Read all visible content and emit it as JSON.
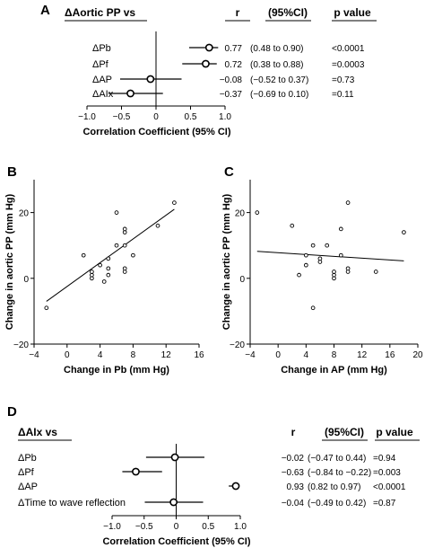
{
  "chart_data": [
    {
      "panel": "A",
      "type": "forest",
      "title": "ΔAortic PP vs",
      "headers": {
        "r": "r",
        "ci": "(95%CI)",
        "p": "p value"
      },
      "xlabel": "Correlation Coefficient (95% CI)",
      "xlim": [
        -1.0,
        1.0
      ],
      "xticks": [
        -1.0,
        -0.5,
        0,
        0.5,
        1.0
      ],
      "xtick_labels": [
        "−1.0",
        "−0.5",
        "0",
        "0.5",
        "1.0"
      ],
      "rows": [
        {
          "label": "ΔPb",
          "r": 0.77,
          "lo": 0.48,
          "hi": 0.9,
          "r_text": "0.77",
          "ci_text": "(0.48 to 0.90)",
          "p_text": "<0.0001"
        },
        {
          "label": "ΔPf",
          "r": 0.72,
          "lo": 0.38,
          "hi": 0.88,
          "r_text": "0.72",
          "ci_text": "(0.38 to 0.88)",
          "p_text": "=0.0003"
        },
        {
          "label": "ΔAP",
          "r": -0.08,
          "lo": -0.52,
          "hi": 0.37,
          "r_text": "−0.08",
          "ci_text": "(−0.52 to 0.37)",
          "p_text": "=0.73"
        },
        {
          "label": "ΔAIx",
          "r": -0.37,
          "lo": -0.69,
          "hi": 0.1,
          "r_text": "−0.37",
          "ci_text": "(−0.69 to 0.10)",
          "p_text": "=0.11"
        }
      ]
    },
    {
      "panel": "B",
      "type": "scatter",
      "xlabel": "Change in Pb (mm Hg)",
      "ylabel": "Change in aortic PP (mm Hg)",
      "xlim": [
        -4,
        16
      ],
      "ylim": [
        -20,
        30
      ],
      "xticks": [
        -4,
        0,
        4,
        8,
        12,
        16
      ],
      "yticks": [
        -20,
        0,
        20
      ],
      "xtick_labels": [
        "−4",
        "0",
        "4",
        "8",
        "12",
        "16"
      ],
      "ytick_labels": [
        "−20",
        "0",
        "20"
      ],
      "points": [
        [
          -2.5,
          -9
        ],
        [
          2,
          7
        ],
        [
          3,
          0
        ],
        [
          3,
          1
        ],
        [
          3,
          2
        ],
        [
          4,
          4
        ],
        [
          4.5,
          -1
        ],
        [
          5,
          1
        ],
        [
          5,
          3
        ],
        [
          5,
          6
        ],
        [
          6,
          10
        ],
        [
          6,
          20
        ],
        [
          7,
          2
        ],
        [
          7,
          3
        ],
        [
          7,
          10
        ],
        [
          7,
          14
        ],
        [
          7,
          15
        ],
        [
          8,
          7
        ],
        [
          11,
          16
        ],
        [
          13,
          23
        ]
      ],
      "fit_line": [
        [
          -2.5,
          -7
        ],
        [
          13,
          21
        ]
      ]
    },
    {
      "panel": "C",
      "type": "scatter",
      "xlabel": "Change in AP (mm Hg)",
      "ylabel": "Change in aortic PP (mm Hg)",
      "xlim": [
        -4,
        20
      ],
      "ylim": [
        -20,
        30
      ],
      "xticks": [
        -4,
        0,
        4,
        8,
        12,
        16,
        20
      ],
      "yticks": [
        -20,
        0,
        20
      ],
      "xtick_labels": [
        "−4",
        "0",
        "4",
        "8",
        "12",
        "16",
        "20"
      ],
      "ytick_labels": [
        "−20",
        "0",
        "20"
      ],
      "points": [
        [
          -3,
          20
        ],
        [
          2,
          16
        ],
        [
          3,
          1
        ],
        [
          4,
          4
        ],
        [
          4,
          7
        ],
        [
          5,
          10
        ],
        [
          5,
          -9
        ],
        [
          6,
          5
        ],
        [
          6,
          6
        ],
        [
          7,
          10
        ],
        [
          8,
          0
        ],
        [
          8,
          1
        ],
        [
          8,
          2
        ],
        [
          9,
          7
        ],
        [
          9,
          15
        ],
        [
          10,
          2
        ],
        [
          10,
          3
        ],
        [
          10,
          23
        ],
        [
          14,
          2
        ],
        [
          18,
          14
        ]
      ],
      "fit_line": [
        [
          -3,
          8.2
        ],
        [
          18,
          5.3
        ]
      ]
    },
    {
      "panel": "D",
      "type": "forest",
      "title": "ΔAIx vs",
      "headers": {
        "r": "r",
        "ci": "(95%CI)",
        "p": "p value"
      },
      "xlabel": "Correlation Coefficient (95% CI)",
      "xlim": [
        -1.0,
        1.0
      ],
      "xticks": [
        -1.0,
        -0.5,
        0,
        0.5,
        1.0
      ],
      "xtick_labels": [
        "−1.0",
        "−0.5",
        "0",
        "0.5",
        "1.0"
      ],
      "rows": [
        {
          "label": "ΔPb",
          "r": -0.02,
          "lo": -0.47,
          "hi": 0.44,
          "r_text": "−0.02",
          "ci_text": "(−0.47 to 0.44)",
          "p_text": "=0.94"
        },
        {
          "label": "ΔPf",
          "r": -0.63,
          "lo": -0.84,
          "hi": -0.22,
          "r_text": "−0.63",
          "ci_text": "(−0.84 to −0.22)",
          "p_text": "=0.003"
        },
        {
          "label": "ΔAP",
          "r": 0.93,
          "lo": 0.82,
          "hi": 0.97,
          "r_text": "0.93",
          "ci_text": "(0.82 to 0.97)",
          "p_text": "<0.0001"
        },
        {
          "label": "ΔTime to wave reflection",
          "r": -0.04,
          "lo": -0.49,
          "hi": 0.42,
          "r_text": "−0.04",
          "ci_text": "(−0.49 to 0.42)",
          "p_text": "=0.87"
        }
      ]
    }
  ],
  "panel_labels": [
    "A",
    "B",
    "C",
    "D"
  ]
}
